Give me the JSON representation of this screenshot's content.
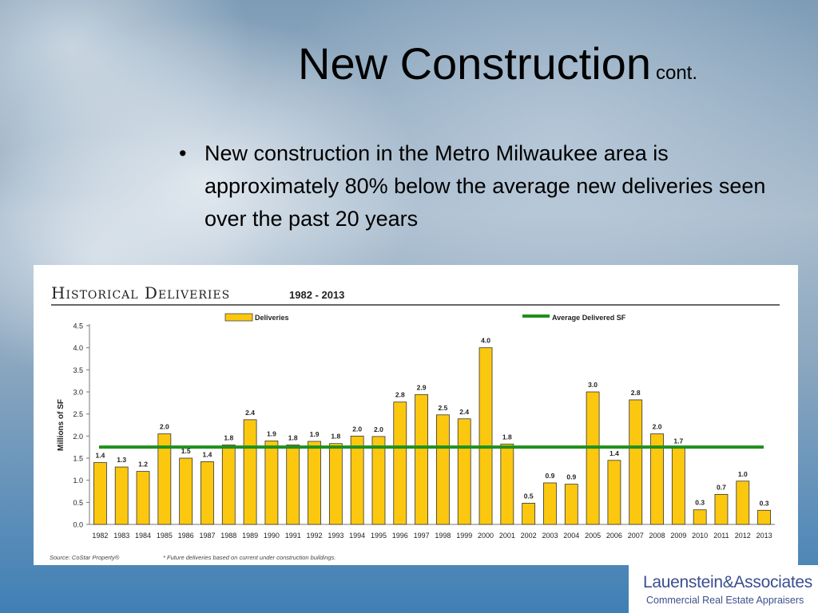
{
  "slide": {
    "title": "New Construction",
    "title_suffix": "cont.",
    "bullet_marker": "•",
    "bullet": "New construction in the Metro Milwaukee area is approximately 80% below the average new deliveries seen over the past 20 years"
  },
  "chart_data": {
    "type": "bar",
    "title": "Historical Deliveries",
    "subtitle": "1982 - 2013",
    "ylabel": "Millions of SF",
    "xlabel": "",
    "ylim": [
      0,
      4.5
    ],
    "yticks": [
      "0.0",
      "0.5",
      "1.0",
      "1.5",
      "2.0",
      "2.5",
      "3.0",
      "3.5",
      "4.0",
      "4.5"
    ],
    "categories": [
      "1982",
      "1983",
      "1984",
      "1985",
      "1986",
      "1987",
      "1988",
      "1989",
      "1990",
      "1991",
      "1992",
      "1993",
      "1994",
      "1995",
      "1996",
      "1997",
      "1998",
      "1999",
      "2000",
      "2001",
      "2002",
      "2003",
      "2004",
      "2005",
      "2006",
      "2007",
      "2008",
      "2009",
      "2010",
      "2011",
      "2012",
      "2013"
    ],
    "series": [
      {
        "name": "Deliveries",
        "color": "#fcc80f",
        "values": [
          1.4,
          1.3,
          1.2,
          2.05,
          1.5,
          1.42,
          1.8,
          2.37,
          1.89,
          1.8,
          1.88,
          1.83,
          2.0,
          1.99,
          2.77,
          2.94,
          2.48,
          2.39,
          4.0,
          1.82,
          0.48,
          0.94,
          0.91,
          3.0,
          1.45,
          2.82,
          2.05,
          1.73,
          0.33,
          0.68,
          0.98,
          0.32
        ],
        "labels": [
          "1.4",
          "1.3",
          "1.2",
          "2.0",
          "1.5",
          "1.4",
          "1.8",
          "2.4",
          "1.9",
          "1.8",
          "1.9",
          "1.8",
          "2.0",
          "2.0",
          "2.8",
          "2.9",
          "2.5",
          "2.4",
          "4.0",
          "1.8",
          "0.5",
          "0.9",
          "0.9",
          "3.0",
          "1.4",
          "2.8",
          "2.0",
          "1.7",
          "0.3",
          "0.7",
          "1.0",
          "0.3"
        ]
      },
      {
        "name": "Average Delivered SF",
        "color": "#1f8f1f",
        "value": 1.75
      }
    ],
    "grid": false,
    "legend": "top",
    "source": "Source: CoStar Property®",
    "footnote": "* Future deliveries based on current under construction buildings."
  },
  "logo": {
    "name": "Lauenstein&Associates",
    "subtitle": "Commercial Real Estate Appraisers"
  }
}
